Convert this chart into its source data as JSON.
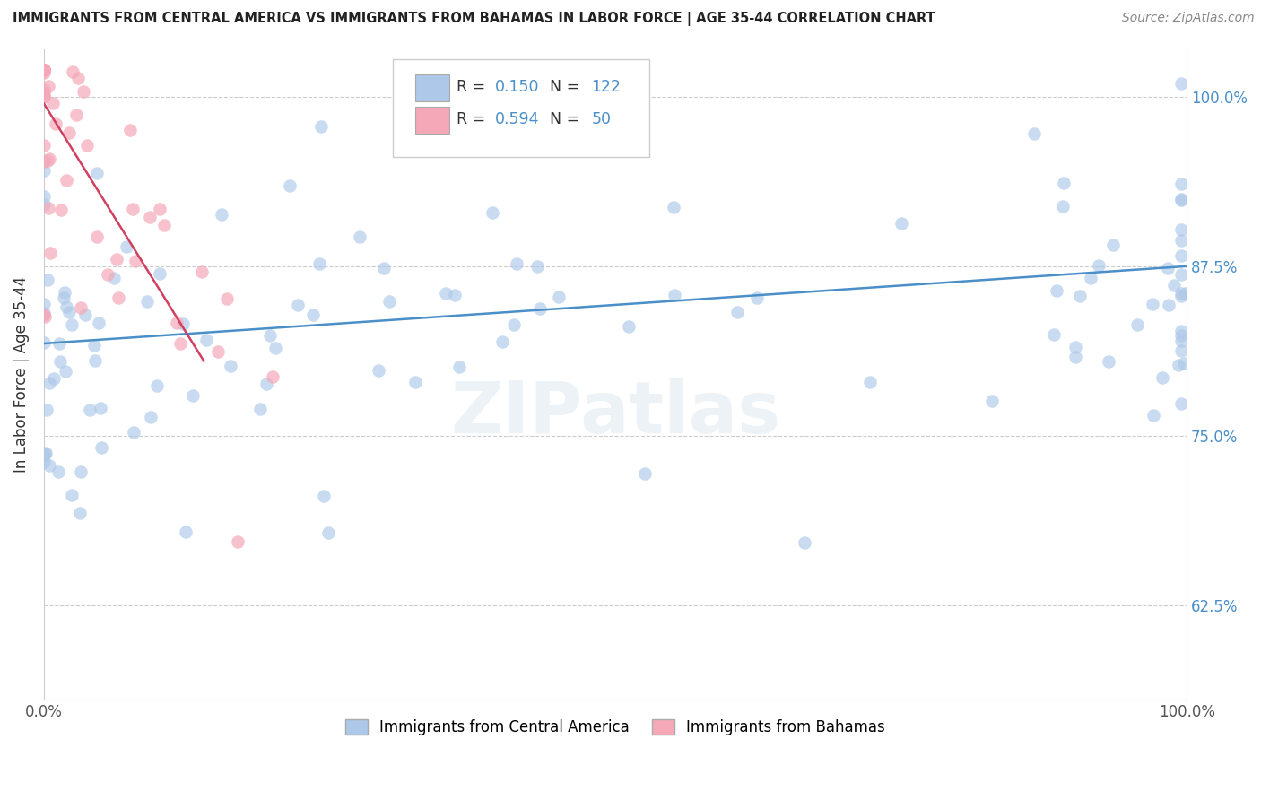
{
  "title": "IMMIGRANTS FROM CENTRAL AMERICA VS IMMIGRANTS FROM BAHAMAS IN LABOR FORCE | AGE 35-44 CORRELATION CHART",
  "source_text": "Source: ZipAtlas.com",
  "ylabel": "In Labor Force | Age 35-44",
  "legend_blue_label": "Immigrants from Central America",
  "legend_pink_label": "Immigrants from Bahamas",
  "R_blue": 0.15,
  "N_blue": 122,
  "R_pink": 0.594,
  "N_pink": 50,
  "blue_color": "#adc8e8",
  "pink_color": "#f5a8b8",
  "blue_line_color": "#4a8fc8",
  "pink_line_color": "#d04060",
  "watermark": "ZIPatlas",
  "xlim": [
    0.0,
    1.0
  ],
  "ylim": [
    0.555,
    1.035
  ],
  "yticks": [
    0.625,
    0.75,
    0.875,
    1.0
  ],
  "ytick_labels": [
    "62.5%",
    "75.0%",
    "87.5%",
    "100.0%"
  ],
  "blue_line_x0": 0.0,
  "blue_line_x1": 1.0,
  "blue_line_y0": 0.818,
  "blue_line_y1": 0.875,
  "pink_line_x0": 0.0,
  "pink_line_x1": 0.14,
  "pink_line_y0": 0.995,
  "pink_line_y1": 0.805
}
